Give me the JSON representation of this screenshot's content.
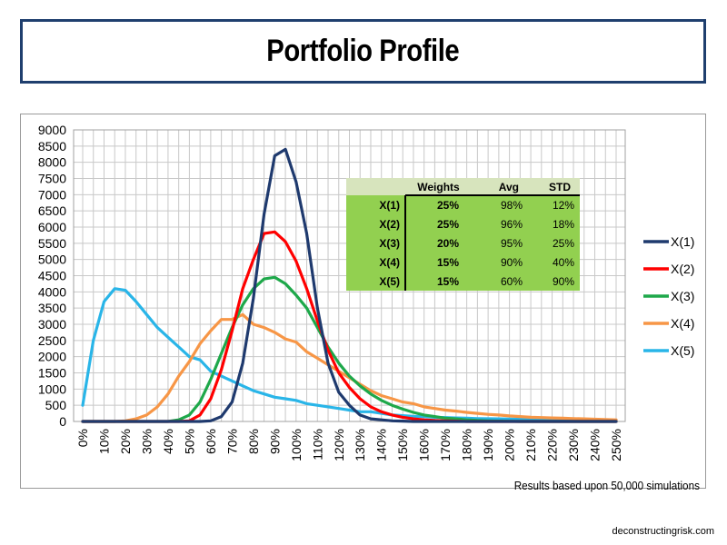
{
  "title": "Portfolio Profile",
  "footnote": "Results based upon 50,000 simulations",
  "credit": "deconstructingrisk.com",
  "chart_data": {
    "type": "line",
    "x": [
      "0%",
      "5%",
      "10%",
      "15%",
      "20%",
      "25%",
      "30%",
      "35%",
      "40%",
      "45%",
      "50%",
      "55%",
      "60%",
      "65%",
      "70%",
      "75%",
      "80%",
      "85%",
      "90%",
      "95%",
      "100%",
      "105%",
      "110%",
      "115%",
      "120%",
      "125%",
      "130%",
      "135%",
      "140%",
      "145%",
      "150%",
      "155%",
      "160%",
      "165%",
      "170%",
      "175%",
      "180%",
      "185%",
      "190%",
      "195%",
      "200%",
      "205%",
      "210%",
      "215%",
      "220%",
      "225%",
      "230%",
      "235%",
      "240%",
      "245%",
      "250%"
    ],
    "x_tick_labels": [
      "0%",
      "10%",
      "20%",
      "30%",
      "40%",
      "50%",
      "60%",
      "70%",
      "80%",
      "90%",
      "100%",
      "110%",
      "120%",
      "130%",
      "140%",
      "150%",
      "160%",
      "170%",
      "180%",
      "190%",
      "200%",
      "210%",
      "220%",
      "230%",
      "240%",
      "250%"
    ],
    "y_ticks": [
      0,
      500,
      1000,
      1500,
      2000,
      2500,
      3000,
      3500,
      4000,
      4500,
      5000,
      5500,
      6000,
      6500,
      7000,
      7500,
      8000,
      8500,
      9000
    ],
    "ylim": [
      0,
      9000
    ],
    "grid": true,
    "legend_position": "right",
    "series": [
      {
        "name": "X(1)",
        "color": "#1f3a6e",
        "values": [
          0,
          0,
          0,
          0,
          0,
          0,
          0,
          0,
          0,
          0,
          0,
          0,
          20,
          150,
          600,
          1800,
          3800,
          6400,
          8200,
          8400,
          7400,
          5800,
          3500,
          1800,
          900,
          500,
          200,
          80,
          50,
          20,
          10,
          0,
          0,
          0,
          0,
          0,
          0,
          0,
          0,
          0,
          0,
          0,
          0,
          0,
          0,
          0,
          0,
          0,
          0,
          0,
          0
        ]
      },
      {
        "name": "X(2)",
        "color": "#ff0000",
        "values": [
          0,
          0,
          0,
          0,
          0,
          0,
          0,
          0,
          0,
          0,
          20,
          200,
          700,
          1600,
          2800,
          4100,
          5000,
          5800,
          5850,
          5550,
          4950,
          4100,
          3100,
          2200,
          1500,
          1050,
          700,
          450,
          300,
          200,
          130,
          80,
          50,
          30,
          20,
          10,
          0,
          0,
          0,
          0,
          0,
          0,
          0,
          0,
          0,
          0,
          0,
          0,
          0,
          0,
          0
        ]
      },
      {
        "name": "X(3)",
        "color": "#1ea84a",
        "values": [
          0,
          0,
          0,
          0,
          0,
          0,
          0,
          0,
          0,
          50,
          200,
          600,
          1300,
          2100,
          2900,
          3600,
          4100,
          4400,
          4450,
          4250,
          3900,
          3500,
          2900,
          2300,
          1800,
          1400,
          1100,
          850,
          650,
          500,
          380,
          280,
          200,
          150,
          100,
          80,
          50,
          30,
          20,
          10,
          5,
          0,
          0,
          0,
          0,
          0,
          0,
          0,
          0,
          0,
          0
        ]
      },
      {
        "name": "X(4)",
        "color": "#f79646",
        "values": [
          0,
          0,
          0,
          0,
          20,
          80,
          200,
          450,
          850,
          1400,
          1850,
          2400,
          2800,
          3150,
          3150,
          3300,
          3000,
          2900,
          2750,
          2550,
          2450,
          2150,
          1950,
          1750,
          1550,
          1350,
          1150,
          950,
          800,
          700,
          600,
          550,
          450,
          400,
          350,
          320,
          280,
          250,
          220,
          200,
          170,
          150,
          130,
          120,
          110,
          100,
          90,
          80,
          70,
          60,
          50
        ]
      },
      {
        "name": "X(5)",
        "color": "#29b5e8",
        "values": [
          500,
          2500,
          3700,
          4100,
          4050,
          3700,
          3300,
          2900,
          2600,
          2300,
          2000,
          1900,
          1550,
          1400,
          1250,
          1100,
          950,
          850,
          750,
          700,
          650,
          550,
          500,
          450,
          400,
          350,
          300,
          300,
          250,
          200,
          180,
          160,
          150,
          130,
          120,
          110,
          100,
          90,
          85,
          80,
          75,
          70,
          65,
          60,
          55,
          50,
          45,
          40,
          40,
          35,
          30
        ]
      }
    ],
    "table": {
      "headers": [
        "",
        "Weights",
        "Avg",
        "STD"
      ],
      "rows": [
        [
          "X(1)",
          "25%",
          "98%",
          "12%"
        ],
        [
          "X(2)",
          "25%",
          "96%",
          "18%"
        ],
        [
          "X(3)",
          "20%",
          "95%",
          "25%"
        ],
        [
          "X(4)",
          "15%",
          "90%",
          "40%"
        ],
        [
          "X(5)",
          "15%",
          "60%",
          "90%"
        ]
      ],
      "header_color": "#d7e4bd",
      "row_color": "#92d050"
    }
  }
}
